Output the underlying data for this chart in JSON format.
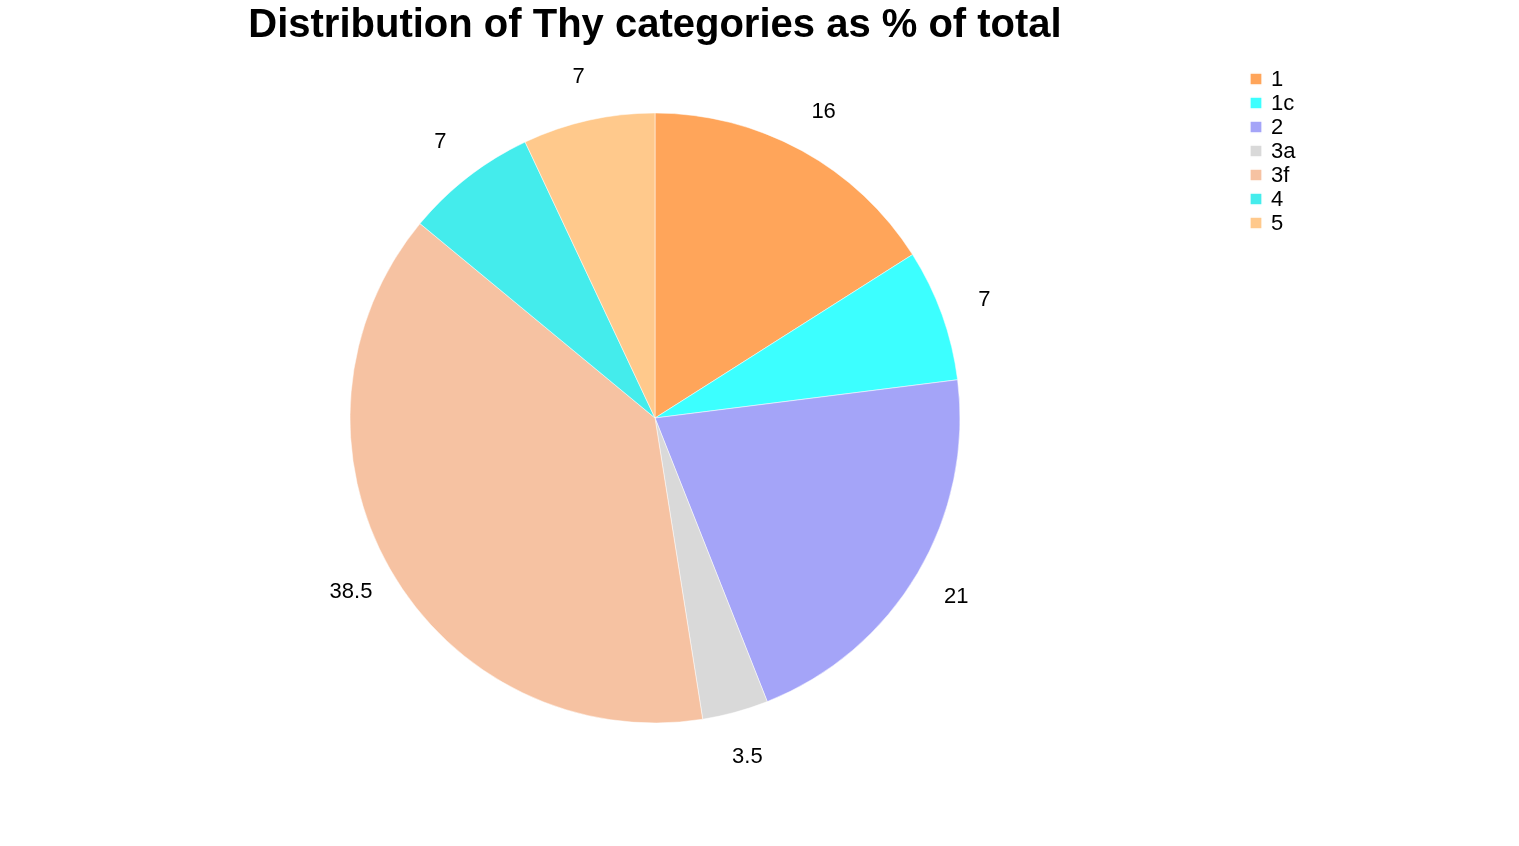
{
  "chart_data": {
    "type": "pie",
    "title": "Distribution of Thy categories as % of total",
    "categories": [
      "1",
      "1c",
      "2",
      "3a",
      "3f",
      "4",
      "5"
    ],
    "values": [
      16,
      7,
      21,
      3.5,
      38.5,
      7,
      7
    ],
    "colors": [
      "#ffa55a",
      "#3cffff",
      "#a4a4f8",
      "#d9d9d9",
      "#f6c2a2",
      "#44ecec",
      "#ffc98c"
    ],
    "data_labels": true,
    "legend": "right"
  }
}
